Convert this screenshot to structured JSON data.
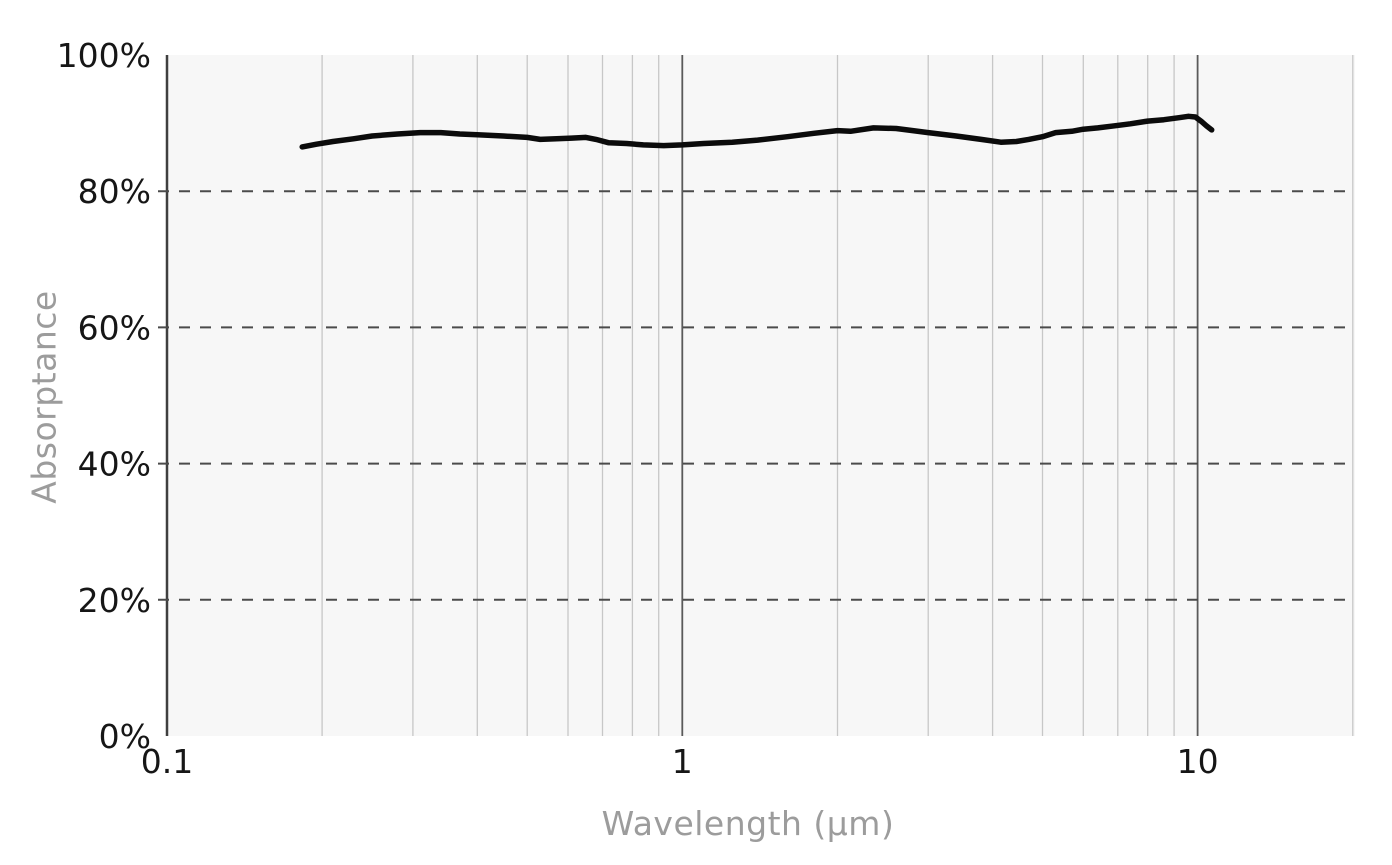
{
  "chart_data": {
    "type": "line",
    "title": "",
    "xlabel": "Wavelength (μm)",
    "ylabel": "Absorptance",
    "x_scale": "log",
    "x_range": [
      0.1,
      20.2
    ],
    "y_range": [
      0,
      100
    ],
    "grid": "vertical log gridlines; horizontal dashed gridlines at 20/40/60/80%",
    "legend": "none",
    "x_ticks": [
      {
        "value": 0.1,
        "label": "0.1"
      },
      {
        "value": 1,
        "label": "1"
      },
      {
        "value": 10,
        "label": "10"
      }
    ],
    "y_ticks": [
      {
        "value": 0,
        "label": "0%"
      },
      {
        "value": 20,
        "label": "20%"
      },
      {
        "value": 40,
        "label": "40%"
      },
      {
        "value": 60,
        "label": "60%"
      },
      {
        "value": 80,
        "label": "80%"
      },
      {
        "value": 100,
        "label": "100%"
      }
    ],
    "minor_x_gridlines": [
      0.2,
      0.3,
      0.4,
      0.5,
      0.6,
      0.7,
      0.8,
      0.9,
      2,
      3,
      4,
      5,
      6,
      7,
      8,
      9,
      20
    ],
    "major_x_gridlines": [
      1,
      10
    ],
    "dashed_y_gridlines": [
      20,
      40,
      60,
      80
    ],
    "series": [
      {
        "name": "Absorptance",
        "points": [
          [
            0.183,
            86.5
          ],
          [
            0.195,
            86.9
          ],
          [
            0.21,
            87.3
          ],
          [
            0.23,
            87.7
          ],
          [
            0.25,
            88.1
          ],
          [
            0.28,
            88.4
          ],
          [
            0.31,
            88.6
          ],
          [
            0.34,
            88.6
          ],
          [
            0.37,
            88.4
          ],
          [
            0.4,
            88.3
          ],
          [
            0.45,
            88.1
          ],
          [
            0.5,
            87.9
          ],
          [
            0.53,
            87.6
          ],
          [
            0.57,
            87.7
          ],
          [
            0.61,
            87.8
          ],
          [
            0.65,
            87.9
          ],
          [
            0.68,
            87.6
          ],
          [
            0.72,
            87.1
          ],
          [
            0.78,
            87.0
          ],
          [
            0.84,
            86.8
          ],
          [
            0.92,
            86.7
          ],
          [
            1.0,
            86.8
          ],
          [
            1.1,
            87.0
          ],
          [
            1.25,
            87.2
          ],
          [
            1.4,
            87.5
          ],
          [
            1.6,
            88.0
          ],
          [
            1.8,
            88.5
          ],
          [
            2.0,
            88.9
          ],
          [
            2.12,
            88.8
          ],
          [
            2.35,
            89.3
          ],
          [
            2.6,
            89.2
          ],
          [
            2.8,
            88.9
          ],
          [
            3.0,
            88.6
          ],
          [
            3.4,
            88.1
          ],
          [
            3.8,
            87.6
          ],
          [
            4.15,
            87.2
          ],
          [
            4.45,
            87.3
          ],
          [
            4.7,
            87.6
          ],
          [
            5.0,
            88.0
          ],
          [
            5.3,
            88.6
          ],
          [
            5.7,
            88.8
          ],
          [
            6.0,
            89.1
          ],
          [
            6.4,
            89.3
          ],
          [
            6.9,
            89.6
          ],
          [
            7.4,
            89.9
          ],
          [
            8.0,
            90.3
          ],
          [
            8.6,
            90.5
          ],
          [
            9.2,
            90.8
          ],
          [
            9.6,
            91.0
          ],
          [
            9.9,
            90.9
          ],
          [
            10.15,
            90.3
          ],
          [
            10.4,
            89.6
          ],
          [
            10.65,
            89.0
          ]
        ]
      }
    ],
    "colors": {
      "curve": "#0b0b0b",
      "plot_bg": "#f7f7f7",
      "page_bg": "#ffffff",
      "minor_grid": "#c7c7c7",
      "major_grid": "#5a5a5a",
      "axis_line": "#3f3f3f",
      "dashed_grid": "#4b4b4b",
      "tick_label": "#161616",
      "axis_title": "#9c9c9c"
    }
  }
}
